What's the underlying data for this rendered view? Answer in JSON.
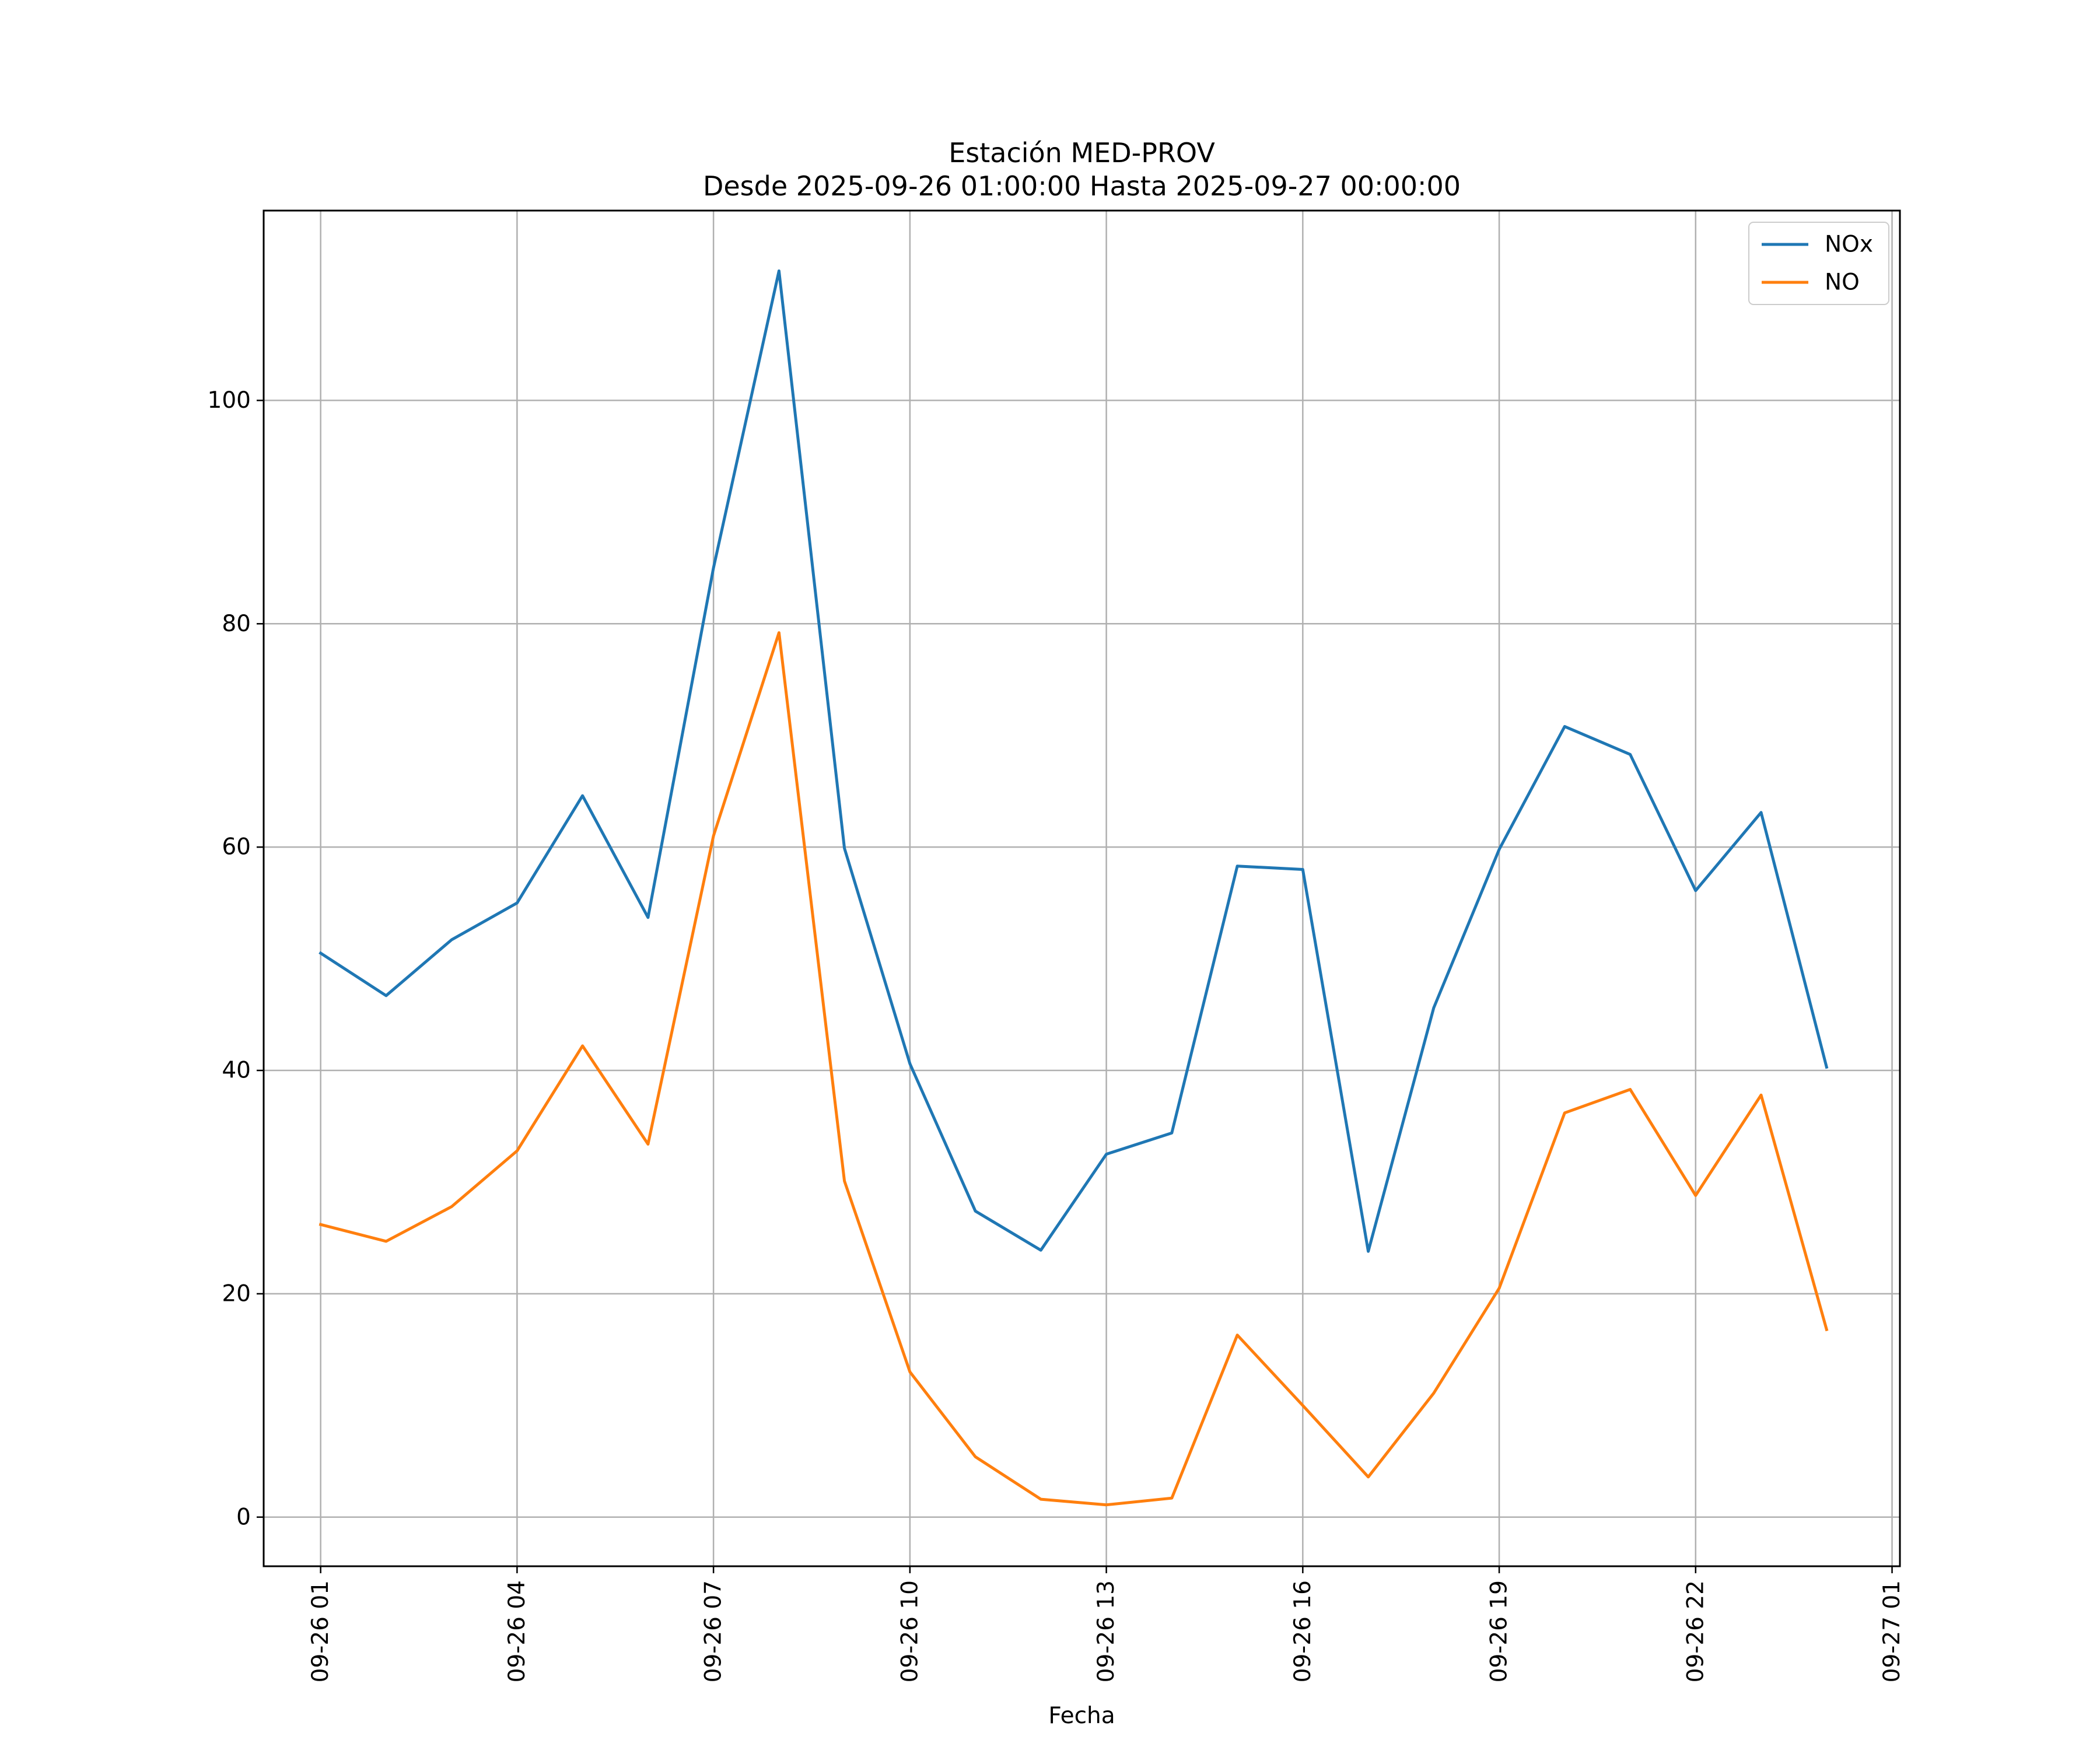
{
  "chart_data": {
    "type": "line",
    "title": "Estación MED-PROV",
    "subtitle": "Desde 2025-09-26 01:00:00 Hasta 2025-09-27 00:00:00",
    "xlabel": "Fecha",
    "ylabel": "",
    "x_hours": [
      1,
      2,
      3,
      4,
      5,
      6,
      7,
      8,
      9,
      10,
      11,
      12,
      13,
      14,
      15,
      16,
      17,
      18,
      19,
      20,
      21,
      22,
      23,
      24
    ],
    "xlim": [
      0.13,
      25.12
    ],
    "ylim": [
      -4.4,
      117
    ],
    "x_ticks": [
      {
        "hour": 1,
        "label": "09-26 01"
      },
      {
        "hour": 4,
        "label": "09-26 04"
      },
      {
        "hour": 7,
        "label": "09-26 07"
      },
      {
        "hour": 10,
        "label": "09-26 10"
      },
      {
        "hour": 13,
        "label": "09-26 13"
      },
      {
        "hour": 16,
        "label": "09-26 16"
      },
      {
        "hour": 19,
        "label": "09-26 19"
      },
      {
        "hour": 22,
        "label": "09-26 22"
      },
      {
        "hour": 25,
        "label": "09-27 01"
      }
    ],
    "y_ticks": [
      {
        "value": 0,
        "label": "0"
      },
      {
        "value": 20,
        "label": "20"
      },
      {
        "value": 40,
        "label": "40"
      },
      {
        "value": 60,
        "label": "60"
      },
      {
        "value": 80,
        "label": "80"
      },
      {
        "value": 100,
        "label": "100"
      }
    ],
    "grid": true,
    "legend_position": "top-right",
    "series": [
      {
        "name": "NOx",
        "color": "#1f77b4",
        "values": [
          50.5,
          46.7,
          51.7,
          55.0,
          64.6,
          53.7,
          85.0,
          111.6,
          59.9,
          40.6,
          27.4,
          23.9,
          32.5,
          34.4,
          58.3,
          58.0,
          23.8,
          45.6,
          59.8,
          70.8,
          68.3,
          56.1,
          63.1,
          40.3
        ]
      },
      {
        "name": "NO",
        "color": "#ff7f0e",
        "values": [
          26.2,
          24.7,
          27.8,
          32.8,
          42.2,
          33.4,
          61.0,
          79.2,
          30.1,
          13.0,
          5.4,
          1.6,
          1.1,
          1.7,
          16.3,
          10.0,
          3.6,
          11.1,
          20.5,
          36.2,
          38.3,
          28.8,
          37.8,
          16.8
        ]
      }
    ]
  }
}
